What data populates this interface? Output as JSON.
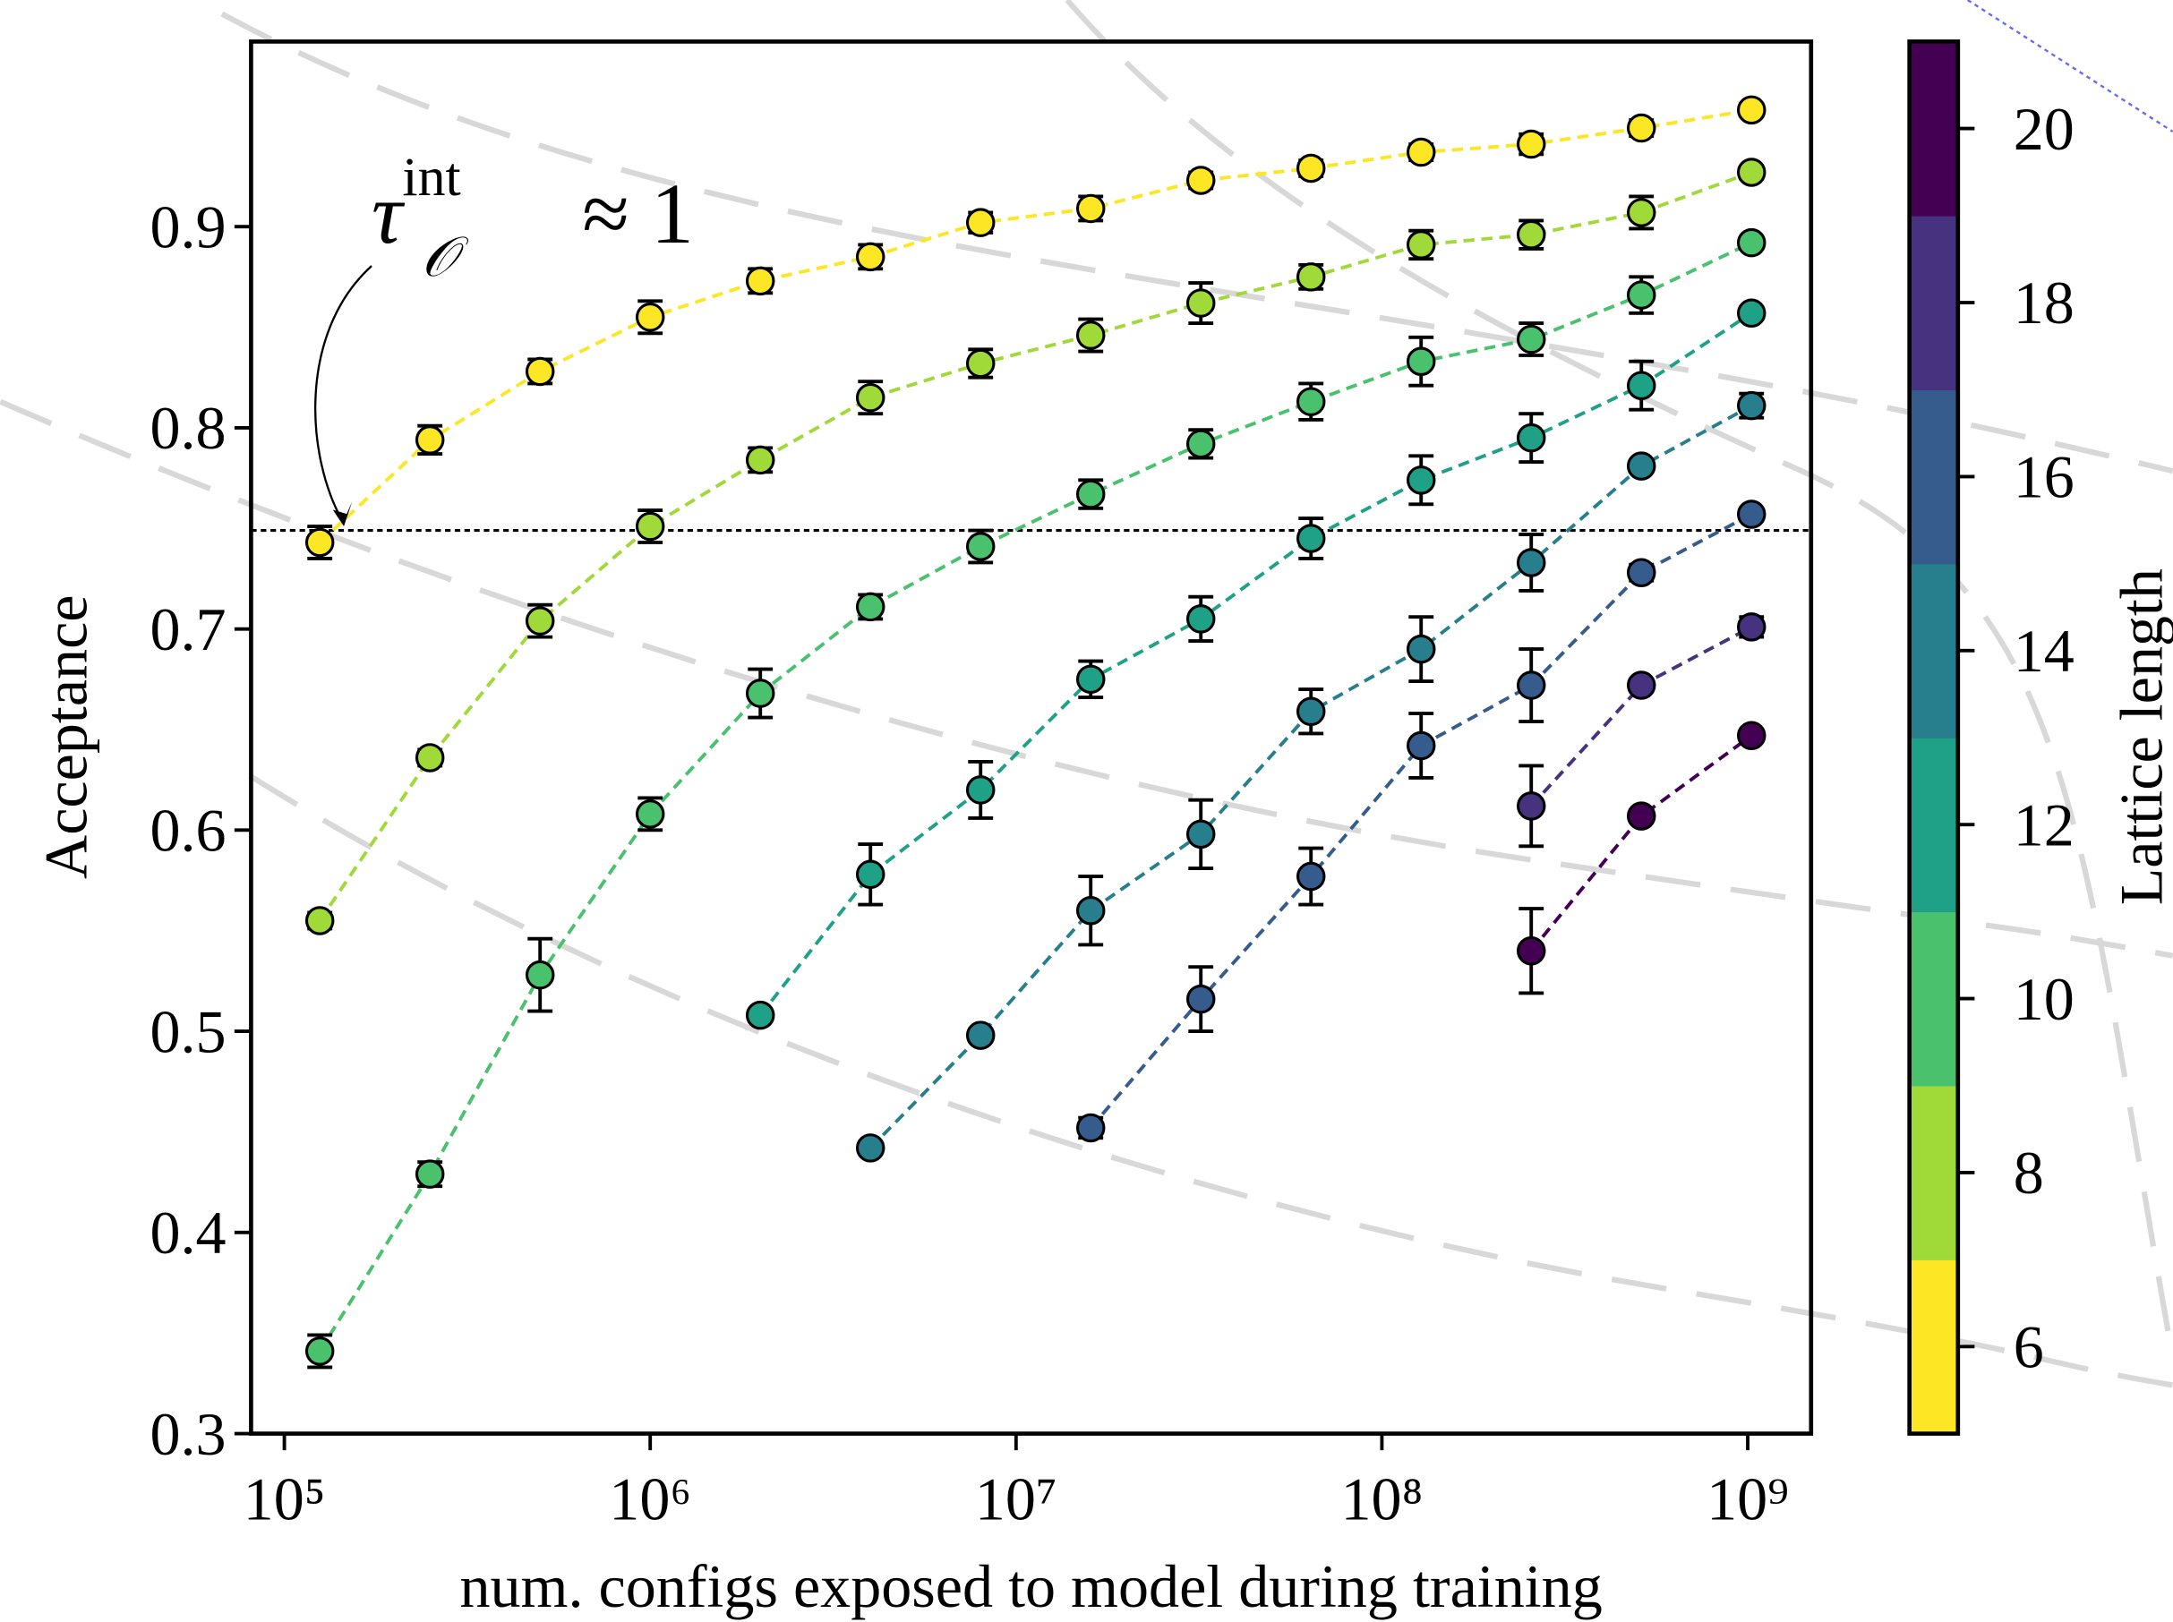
{
  "chart_data": {
    "type": "line",
    "xlabel": "num. configs exposed to model during training",
    "ylabel": "Acceptance",
    "xscale": "log",
    "xlim": [
      81100,
      1490000000
    ],
    "ylim": [
      0.3,
      0.992
    ],
    "xticks": [
      {
        "value": 100000,
        "label": "10⁵"
      },
      {
        "value": 1000000,
        "label": "10⁶"
      },
      {
        "value": 10000000,
        "label": "10⁷"
      },
      {
        "value": 100000000,
        "label": "10⁸"
      },
      {
        "value": 1000000000,
        "label": "10⁹"
      }
    ],
    "yticks": [
      0.3,
      0.4,
      0.5,
      0.6,
      0.7,
      0.8,
      0.9
    ],
    "hline": 0.749,
    "annotation": {
      "symbol": "τ",
      "sup": "int",
      "sub": "𝒪",
      "text": "≈ 1"
    },
    "series": [
      {
        "name": "6",
        "color": "#fde725",
        "x": [
          125000,
          250000,
          500000,
          1000000,
          2000000,
          4000000,
          8000000,
          16000000,
          32000000,
          64000000,
          128000000,
          256000000,
          512000000,
          1024000000
        ],
        "values": [
          0.743,
          0.794,
          0.828,
          0.855,
          0.873,
          0.885,
          0.902,
          0.909,
          0.923,
          0.929,
          0.937,
          0.941,
          0.949,
          0.958
        ],
        "errors": [
          0.008,
          0.007,
          0.006,
          0.008,
          0.006,
          0.006,
          0.005,
          0.006,
          0.004,
          0.004,
          0.004,
          0.005,
          0.004,
          0.003
        ]
      },
      {
        "name": "8",
        "color": "#a0da39",
        "x": [
          125000,
          250000,
          500000,
          1000000,
          2000000,
          4000000,
          8000000,
          16000000,
          32000000,
          64000000,
          128000000,
          256000000,
          512000000,
          1024000000
        ],
        "values": [
          0.555,
          0.636,
          0.704,
          0.751,
          0.784,
          0.815,
          0.832,
          0.846,
          0.862,
          0.875,
          0.891,
          0.896,
          0.907,
          0.927
        ],
        "errors": [
          0.004,
          0.004,
          0.008,
          0.008,
          0.006,
          0.008,
          0.007,
          0.008,
          0.01,
          0.006,
          0.007,
          0.007,
          0.008,
          0.003
        ]
      },
      {
        "name": "10",
        "color": "#4ac16d",
        "x": [
          125000,
          250000,
          500000,
          1000000,
          2000000,
          4000000,
          8000000,
          16000000,
          32000000,
          64000000,
          128000000,
          256000000,
          512000000,
          1024000000
        ],
        "values": [
          0.341,
          0.429,
          0.528,
          0.608,
          0.668,
          0.711,
          0.741,
          0.767,
          0.792,
          0.813,
          0.833,
          0.844,
          0.866,
          0.892
        ],
        "errors": [
          0.008,
          0.006,
          0.018,
          0.008,
          0.012,
          0.006,
          0.008,
          0.007,
          0.007,
          0.009,
          0.012,
          0.008,
          0.009,
          0.003
        ]
      },
      {
        "name": "12",
        "color": "#1fa187",
        "x": [
          2000000,
          4000000,
          8000000,
          16000000,
          32000000,
          64000000,
          128000000,
          256000000,
          512000000,
          1024000000
        ],
        "values": [
          0.508,
          0.578,
          0.62,
          0.675,
          0.705,
          0.745,
          0.774,
          0.795,
          0.821,
          0.857
        ],
        "errors": [
          0.003,
          0.015,
          0.014,
          0.009,
          0.011,
          0.01,
          0.012,
          0.012,
          0.012,
          0.003
        ]
      },
      {
        "name": "14",
        "color": "#277f8e",
        "x": [
          4000000,
          8000000,
          16000000,
          32000000,
          64000000,
          128000000,
          256000000,
          512000000,
          1024000000
        ],
        "values": [
          0.442,
          0.498,
          0.56,
          0.598,
          0.659,
          0.69,
          0.733,
          0.781,
          0.811
        ],
        "errors": [
          0.003,
          0.003,
          0.017,
          0.017,
          0.011,
          0.016,
          0.014,
          0.003,
          0.006
        ]
      },
      {
        "name": "16",
        "color": "#365c8d",
        "x": [
          16000000,
          32000000,
          64000000,
          128000000,
          256000000,
          512000000,
          1024000000
        ],
        "values": [
          0.452,
          0.516,
          0.577,
          0.642,
          0.672,
          0.728,
          0.757
        ],
        "errors": [
          0.005,
          0.016,
          0.014,
          0.016,
          0.018,
          0.004,
          0.003
        ]
      },
      {
        "name": "18",
        "color": "#46327e",
        "x": [
          256000000,
          512000000,
          1024000000
        ],
        "values": [
          0.612,
          0.672,
          0.701
        ],
        "errors": [
          0.02,
          0.003,
          0.005
        ]
      },
      {
        "name": "20",
        "color": "#440154",
        "x": [
          256000000,
          512000000,
          1024000000
        ],
        "values": [
          0.54,
          0.607,
          0.647
        ],
        "errors": [
          0.021,
          0.003,
          0.003
        ]
      }
    ],
    "colorbar": {
      "label": "Lattice length",
      "lim": [
        5,
        21
      ],
      "ticks": [
        6,
        8,
        10,
        12,
        14,
        16,
        18,
        20
      ],
      "colors": [
        "#fde725",
        "#a0da39",
        "#4ac16d",
        "#1fa187",
        "#277f8e",
        "#365c8d",
        "#46327e",
        "#440154"
      ]
    }
  }
}
